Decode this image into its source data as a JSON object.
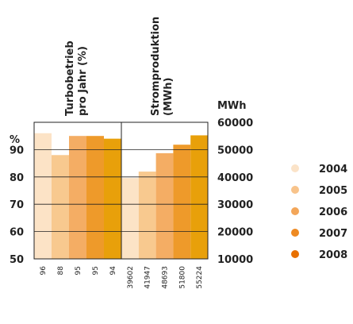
{
  "chart_data": {
    "type": "bar",
    "left_panel": {
      "title_lines": [
        "Turbobetrieb",
        "pro Jahr (%)"
      ],
      "unit": "%",
      "ylim": [
        50,
        100
      ],
      "yticks": [
        50,
        60,
        70,
        80,
        90
      ],
      "values": [
        96,
        88,
        95,
        95,
        94
      ]
    },
    "right_panel": {
      "title_lines": [
        "Stromproduktion",
        "(MWh)"
      ],
      "unit": "MWh",
      "ylim": [
        10000,
        60000
      ],
      "yticks": [
        "10000",
        "20000",
        "30000",
        "40000",
        "50000",
        "60000"
      ],
      "tick_values": [
        10000,
        20000,
        30000,
        40000,
        50000,
        60000
      ],
      "values": [
        39602,
        41947,
        48693,
        51800,
        55224
      ]
    },
    "categories": [
      "2004",
      "2005",
      "2006",
      "2007",
      "2008"
    ],
    "colors": [
      "#fce3c6",
      "#f8c98f",
      "#f4ad64",
      "#ee9a2a",
      "#e8a00a"
    ],
    "legend_colors": [
      "#fbe3c8",
      "#f8c38a",
      "#f3a659",
      "#ee8a22",
      "#e87000"
    ],
    "legend_placement": "right",
    "grid": true
  }
}
